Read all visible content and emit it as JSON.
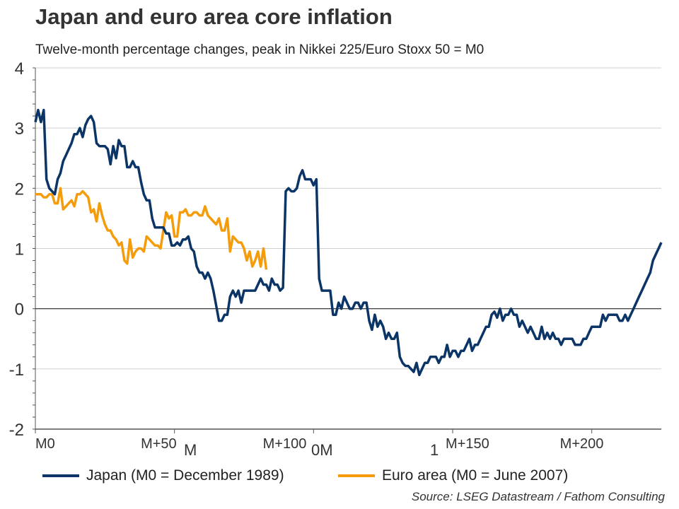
{
  "chart_data": {
    "type": "line",
    "title": "Japan and euro area core inflation",
    "subtitle": "Twelve-month percentage changes, peak in Nikkei 225/Euro Stoxx 50 = M0",
    "xlabel": "",
    "ylabel": "",
    "xlim": [
      0,
      225
    ],
    "ylim": [
      -2,
      4
    ],
    "grid": true,
    "legend_position": "bottom",
    "y_ticks": [
      "4",
      "3",
      "2",
      "1",
      "0",
      "-1",
      "-2"
    ],
    "x_ticks": [
      {
        "month": 0,
        "label": "M0"
      },
      {
        "month": 50,
        "label": "M+50"
      },
      {
        "month": 100,
        "label": "M+100"
      },
      {
        "month": 150,
        "label": "M+150"
      },
      {
        "month": 200,
        "label": "M+200"
      }
    ],
    "x_tick_artifacts": [
      "M",
      "0M",
      "1"
    ],
    "series": [
      {
        "name": "Japan (M0 = December 1989)",
        "color": "#0b3566",
        "values": [
          3.1,
          3.3,
          3.1,
          3.3,
          2.15,
          2.0,
          1.95,
          1.9,
          2.15,
          2.25,
          2.45,
          2.55,
          2.65,
          2.75,
          2.9,
          2.9,
          3.0,
          2.85,
          3.05,
          3.15,
          3.2,
          3.1,
          2.75,
          2.7,
          2.7,
          2.7,
          2.65,
          2.4,
          2.7,
          2.5,
          2.8,
          2.7,
          2.7,
          2.35,
          2.35,
          2.45,
          2.35,
          2.35,
          2.1,
          1.9,
          1.8,
          1.8,
          1.5,
          1.35,
          1.35,
          1.35,
          1.35,
          1.25,
          1.25,
          1.05,
          1.05,
          1.1,
          1.05,
          1.15,
          1.15,
          1.2,
          1.0,
          0.95,
          0.7,
          0.6,
          0.6,
          0.5,
          0.6,
          0.5,
          0.3,
          0.05,
          -0.2,
          -0.2,
          -0.1,
          -0.1,
          0.2,
          0.3,
          0.2,
          0.3,
          0.1,
          0.3,
          0.3,
          0.3,
          0.3,
          0.3,
          0.4,
          0.5,
          0.4,
          0.4,
          0.3,
          0.5,
          0.4,
          0.4,
          0.3,
          0.35,
          1.95,
          2.0,
          1.95,
          1.95,
          2.0,
          2.2,
          2.3,
          2.15,
          2.15,
          2.15,
          2.05,
          2.15,
          0.5,
          0.3,
          0.3,
          0.3,
          0.3,
          -0.1,
          -0.1,
          0.1,
          0.0,
          0.2,
          0.1,
          0.0,
          0.0,
          0.1,
          0.1,
          0.0,
          0.1,
          0.1,
          -0.2,
          -0.35,
          -0.1,
          -0.3,
          -0.2,
          -0.3,
          -0.5,
          -0.4,
          -0.5,
          -0.5,
          -0.4,
          -0.8,
          -0.9,
          -0.95,
          -0.95,
          -1.0,
          -1.05,
          -0.9,
          -1.1,
          -1.0,
          -0.9,
          -0.9,
          -0.8,
          -0.8,
          -0.8,
          -0.9,
          -0.8,
          -0.8,
          -0.6,
          -0.8,
          -0.7,
          -0.7,
          -0.8,
          -0.7,
          -0.7,
          -0.6,
          -0.5,
          -0.7,
          -0.6,
          -0.6,
          -0.5,
          -0.4,
          -0.3,
          -0.3,
          -0.1,
          -0.05,
          -0.15,
          0.0,
          -0.2,
          -0.1,
          -0.1,
          0.0,
          -0.1,
          -0.1,
          -0.3,
          -0.2,
          -0.3,
          -0.4,
          -0.3,
          -0.4,
          -0.5,
          -0.5,
          -0.3,
          -0.5,
          -0.4,
          -0.5,
          -0.4,
          -0.5,
          -0.5,
          -0.6,
          -0.5,
          -0.5,
          -0.5,
          -0.5,
          -0.6,
          -0.6,
          -0.6,
          -0.5,
          -0.5,
          -0.4,
          -0.3,
          -0.3,
          -0.3,
          -0.3,
          -0.1,
          -0.2,
          -0.1,
          -0.1,
          -0.1,
          -0.1,
          -0.2,
          -0.2,
          -0.1,
          -0.2,
          -0.1,
          0.0,
          0.1,
          0.2,
          0.3,
          0.4,
          0.5,
          0.6,
          0.8,
          0.9,
          1.0,
          1.1
        ]
      },
      {
        "name": "Euro area (M0 = June 2007)",
        "color": "#f59c0b",
        "values": [
          1.9,
          1.9,
          1.9,
          1.85,
          1.85,
          1.9,
          1.9,
          1.75,
          1.75,
          2.0,
          1.65,
          1.7,
          1.75,
          1.8,
          1.7,
          1.9,
          1.9,
          1.95,
          1.9,
          1.85,
          1.6,
          1.65,
          1.45,
          1.75,
          1.55,
          1.4,
          1.3,
          1.3,
          1.2,
          1.15,
          1.05,
          1.1,
          0.8,
          0.75,
          1.15,
          0.85,
          0.95,
          1.0,
          1.0,
          0.95,
          1.2,
          1.15,
          1.1,
          1.05,
          1.05,
          1.0,
          1.3,
          1.6,
          1.5,
          1.55,
          1.2,
          1.2,
          1.6,
          1.6,
          1.65,
          1.55,
          1.55,
          1.6,
          1.6,
          1.55,
          1.55,
          1.7,
          1.55,
          1.5,
          1.45,
          1.4,
          1.5,
          1.3,
          1.3,
          1.5,
          0.95,
          1.2,
          1.15,
          1.1,
          1.1,
          1.0,
          0.8,
          0.95,
          0.7,
          0.8,
          0.95,
          0.7,
          1.0,
          0.65
        ]
      }
    ]
  },
  "source": "Source: LSEG Datastream / Fathom Consulting"
}
